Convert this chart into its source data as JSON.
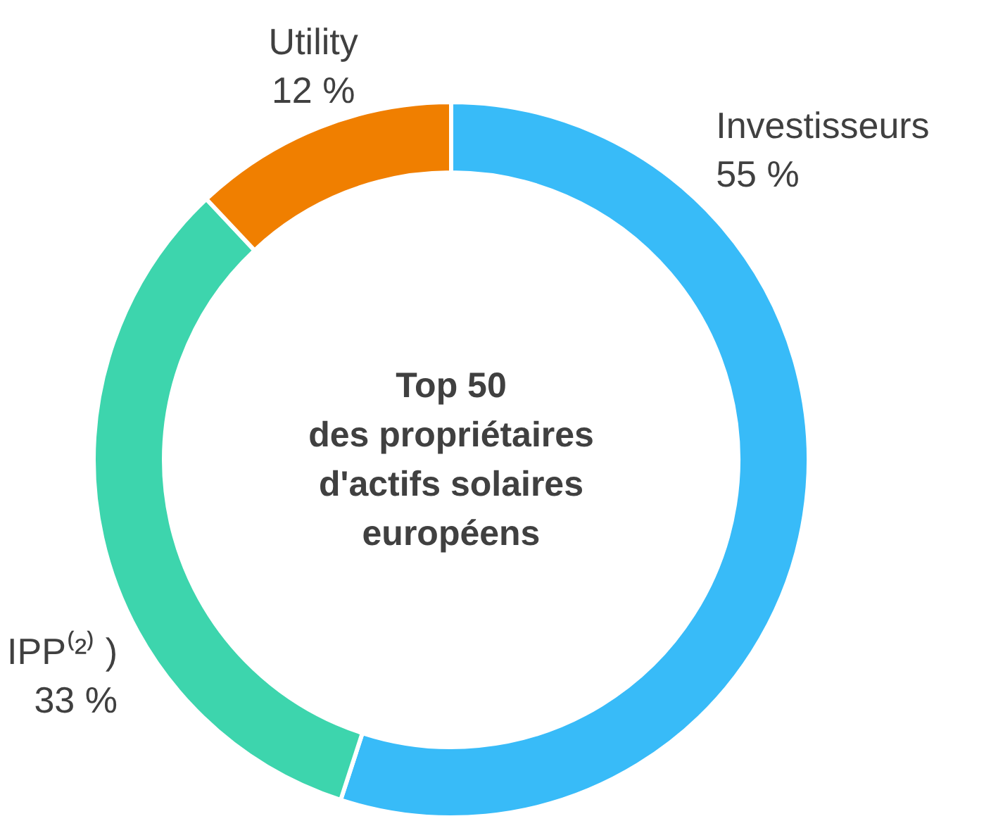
{
  "chart_data": {
    "type": "donut",
    "title": "Top 50\ndes propriétaires\nd'actifs solaires\neuropéens",
    "categories": [
      "Investisseurs",
      "IPP⁽²⁾ )",
      "Utility"
    ],
    "values": [
      55,
      33,
      12
    ],
    "value_labels": [
      "55 %",
      "33 %",
      "12 %"
    ],
    "colors": [
      "#38bbf8",
      "#3dd5ad",
      "#f07f00"
    ]
  }
}
